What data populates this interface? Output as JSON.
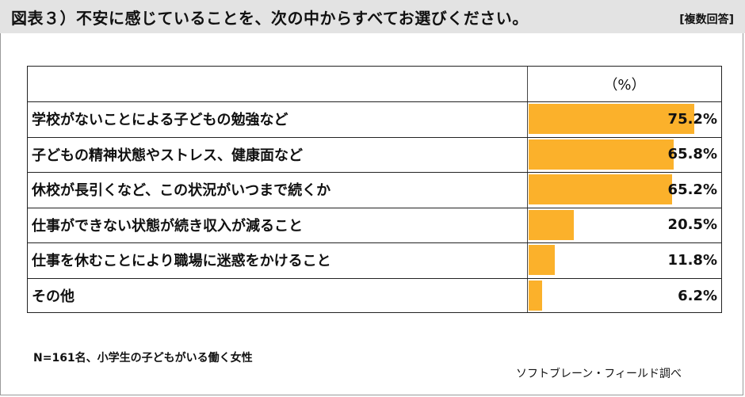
{
  "header": {
    "title": "図表３）不安に感じていることを、次の中からすべてお選びください。",
    "note": "[複数回答]"
  },
  "table": {
    "unit_label": "（%）"
  },
  "chart_data": {
    "type": "bar",
    "orientation": "horizontal",
    "categories": [
      "学校がないことによる子どもの勉強など",
      "子どもの精神状態やストレス、健康面など",
      "休校が長引くなど、この状況がいつまで続くか",
      "仕事ができない状態が続き収入が減ること",
      "仕事を休むことにより職場に迷惑をかけること",
      "その他"
    ],
    "values": [
      75.2,
      65.8,
      65.2,
      20.5,
      11.8,
      6.2
    ],
    "value_labels": [
      "75.2%",
      "65.8%",
      "65.2%",
      "20.5%",
      "11.8%",
      "6.2%"
    ],
    "xlim": [
      0,
      100
    ],
    "bar_color": "#fbb12b"
  },
  "footer": {
    "sample": "N=161名、小学生の子どもがいる働く女性",
    "source": "ソフトブレーン・フィールド調べ"
  }
}
